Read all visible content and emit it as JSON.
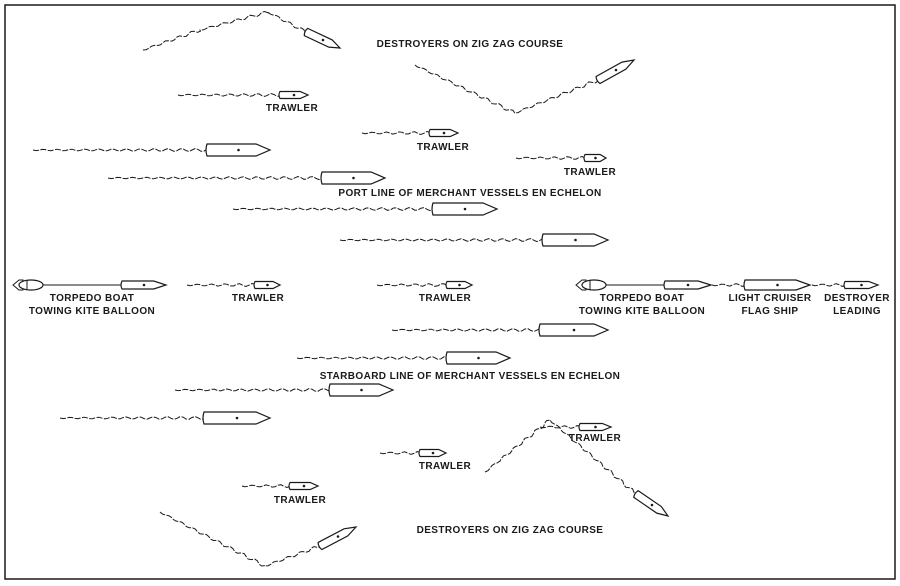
{
  "labels": {
    "destroyers_top": "DESTROYERS ON ZIG ZAG COURSE",
    "destroyers_bottom": "DESTROYERS ON ZIG ZAG COURSE",
    "port_line": "PORT LINE OF MERCHANT VESSELS EN ECHELON",
    "starboard_line": "STARBOARD LINE OF MERCHANT VESSELS EN ECHELON",
    "trawler": "TRAWLER",
    "torpedo_boat": "TORPEDO BOAT",
    "towing_kite_balloon": "TOWING KITE BALLOON",
    "light_cruiser": "LIGHT CRUISER",
    "flag_ship": "FLAG SHIP",
    "destroyer": "DESTROYER",
    "leading": "LEADING"
  },
  "colors": {
    "ink": "#1a1a1a",
    "paper": "#ffffff"
  }
}
